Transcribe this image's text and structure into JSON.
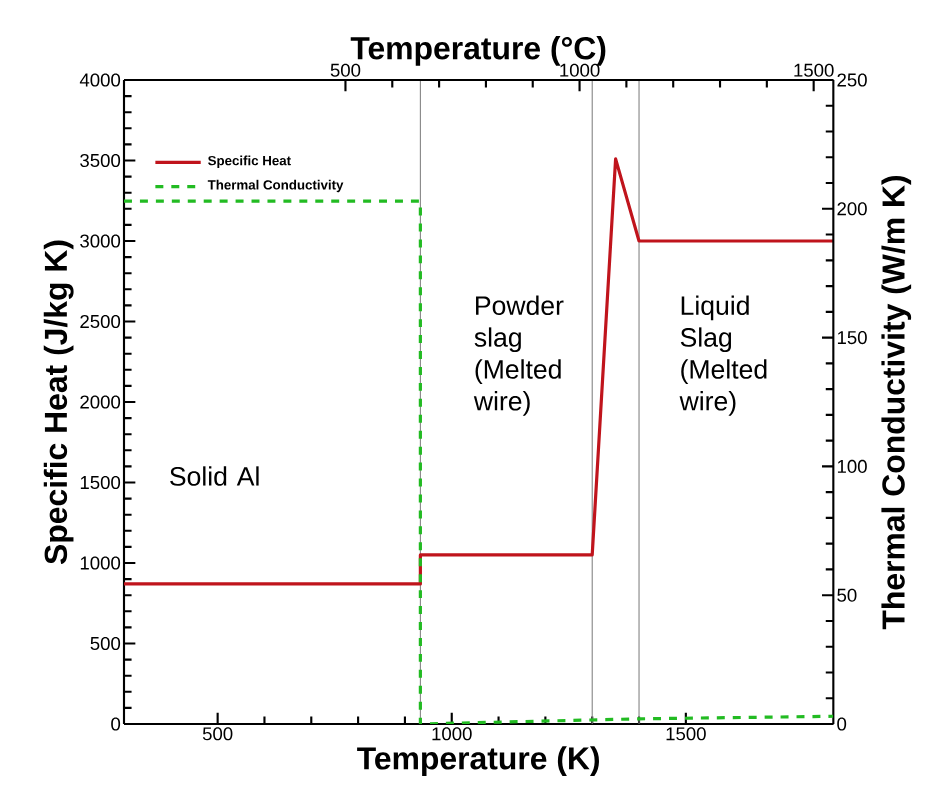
{
  "chart_data": {
    "type": "line",
    "xlabel": "Temperature (K)",
    "ylabel": "Specific Heat (J/kg K)",
    "y2label": "Thermal Conductivity (W/m K)",
    "x2label": "Temperature (°C)",
    "xlim": [
      300,
      1815
    ],
    "xticks": [
      500,
      1000,
      1500
    ],
    "ylim": [
      0,
      4000
    ],
    "yticks": [
      0,
      500,
      1000,
      1500,
      2000,
      2500,
      3000,
      3500,
      4000
    ],
    "y2lim": [
      0,
      250
    ],
    "y2ticks": [
      0,
      50,
      100,
      150,
      200,
      250
    ],
    "x2lim": [
      27,
      1542
    ],
    "x2ticks": [
      500,
      1000,
      1500
    ],
    "series": [
      {
        "name": "Specific Heat",
        "color": "#c0141c",
        "line_style": "solid",
        "x": [
          300,
          933,
          933,
          1300,
          1350,
          1400,
          1815
        ],
        "values": [
          870,
          870,
          1050,
          1050,
          3510,
          3000,
          3000
        ]
      },
      {
        "name": "Thermal Conductivity",
        "color": "#22bb22",
        "line_style": "dashed",
        "axis": "y2",
        "x": [
          300,
          933,
          933,
          1400,
          1815
        ],
        "values": [
          203,
          203,
          0,
          2,
          3
        ]
      }
    ],
    "ref_lines": [
      {
        "axis": "x",
        "value": 933,
        "color": "#808080"
      },
      {
        "axis": "x",
        "value": 1300,
        "color": "#808080"
      },
      {
        "axis": "x",
        "value": 1400,
        "color": "#808080"
      }
    ],
    "annotations": [
      "Solid Al",
      "Powder slag (Melted wire)",
      "Liquid Slag (Melted wire)"
    ],
    "legend": "top left",
    "grid": false
  }
}
